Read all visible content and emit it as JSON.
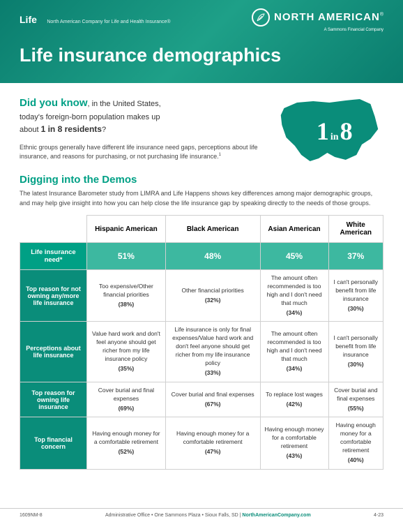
{
  "header": {
    "life_tag": "Life",
    "tagline": "North American Company for Life and Health Insurance®",
    "logo_text": "NORTH AMERICAN",
    "logo_reg": "®",
    "logo_sub": "A Sammons Financial Company",
    "main_title": "Life insurance demographics"
  },
  "intro": {
    "dyk": "Did you know",
    "dyk_line1": ", in the United States,",
    "dyk_line2": "today's foreign-born population makes up",
    "dyk_line3_pre": "about ",
    "dyk_line3_bold": "1 in 8 residents",
    "dyk_line3_post": "?",
    "sub_para": "Ethnic groups generally have different life insurance need gaps, perceptions about life insurance, and reasons for purchasing, or not purchasing life insurance.",
    "footnote_mark": "1",
    "map_big1": "1",
    "map_in": "in",
    "map_big2": "8"
  },
  "section2": {
    "title": "Digging into the Demos",
    "para": "The latest Insurance Barometer study from LIMRA and Life Happens shows key differences among major demographic groups, and may help give insight into how you can help close the life insurance gap by speaking directly to the needs of those groups."
  },
  "table": {
    "columns": [
      "Hispanic American",
      "Black American",
      "Asian American",
      "White American"
    ],
    "rows": [
      {
        "label": "Life insurance need*",
        "type": "need",
        "cells": [
          {
            "pct": "51%"
          },
          {
            "pct": "48%"
          },
          {
            "pct": "45%"
          },
          {
            "pct": "37%"
          }
        ]
      },
      {
        "label": "Top reason for not owning any/more life insurance",
        "cells": [
          {
            "text": "Too expensive/Other financial priorities",
            "pct": "(38%)"
          },
          {
            "text": "Other financial priorities",
            "pct": "(32%)"
          },
          {
            "text": "The amount often recommended is too high and I don't need that much",
            "pct": "(34%)"
          },
          {
            "text": "I can't personally benefit from life insurance",
            "pct": "(30%)"
          }
        ]
      },
      {
        "label": "Perceptions about life insurance",
        "cells": [
          {
            "text": "Value hard work and don't feel anyone should get richer from my life insurance policy",
            "pct": "(35%)"
          },
          {
            "text": "Life insurance is only for final expenses/Value hard work and don't feel anyone should get richer from my life insurance policy",
            "pct": "(33%)"
          },
          {
            "text": "The amount often recommended is too high and I don't need that much",
            "pct": "(34%)"
          },
          {
            "text": "I can't personally benefit from life insurance",
            "pct": "(30%)"
          }
        ]
      },
      {
        "label": "Top reason for owning life insurance",
        "cells": [
          {
            "text": "Cover burial and final expenses",
            "pct": "(69%)"
          },
          {
            "text": "Cover burial and final expenses",
            "pct": "(67%)"
          },
          {
            "text": "To replace lost wages",
            "pct": "(42%)"
          },
          {
            "text": "Cover burial and final expenses",
            "pct": "(55%)"
          }
        ]
      },
      {
        "label": "Top financial concern",
        "cells": [
          {
            "text": "Having enough money for a comfortable retirement",
            "pct": "(52%)"
          },
          {
            "text": "Having enough money for a comfortable retirement",
            "pct": "(47%)"
          },
          {
            "text": "Having enough money for a comfortable retirement",
            "pct": "(43%)"
          },
          {
            "text": "Having enough money for a comfortable retirement",
            "pct": "(40%)"
          }
        ]
      }
    ]
  },
  "footer": {
    "left": "1609NM-8",
    "center_pre": "Administrative Office • One Sammons Plaza • Sioux Falls, SD  |  ",
    "center_link": "NorthAmericanCompany.com",
    "right": "4-23"
  },
  "colors": {
    "teal_primary": "#00a085",
    "teal_dark": "#0a8d7a",
    "teal_light": "#3db8a0",
    "header_grad_start": "#0a7d6e",
    "text_dark": "#333333",
    "border": "#d0d0d0"
  }
}
